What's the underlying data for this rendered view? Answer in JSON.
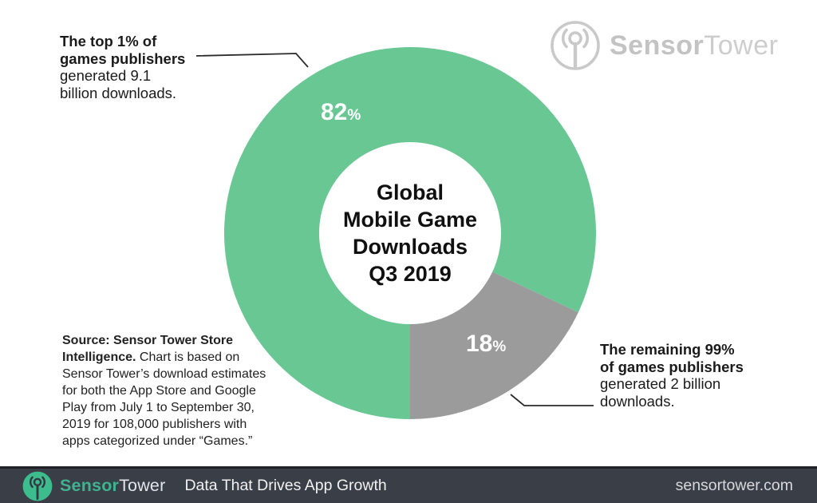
{
  "watermark": {
    "brand_bold": "Sensor",
    "brand_light": "Tower"
  },
  "annotations": {
    "top_left": {
      "lines": [
        "The top 1% of",
        "games publishers",
        "generated 9.1",
        "billion downloads."
      ]
    },
    "bottom_right": {
      "lines": [
        "The remaining 99%",
        "of games publishers",
        "generated 2 billion",
        "downloads."
      ]
    }
  },
  "source_note": {
    "line1_bold": "Source: Sensor Tower Store",
    "line2_bold": "Intelligence.",
    "line2_rest": " Chart is based on",
    "rest_lines": [
      "Sensor Tower’s download estimates",
      "for both the App Store and Google",
      "Play from July 1 to September 30,",
      "2019 for 108,000 publishers with",
      "apps categorized under “Games.”"
    ]
  },
  "chart_data": {
    "type": "pie",
    "donut": true,
    "title": "Global Mobile Game Downloads Q3 2019",
    "center_title_lines": [
      "Global",
      "Mobile Game",
      "Downloads",
      "Q3 2019"
    ],
    "categories": [
      "Top 1% of games publishers",
      "Remaining 99% of games publishers"
    ],
    "values": [
      82,
      18
    ],
    "label_values": [
      "82",
      "18"
    ],
    "unit": "%",
    "colors": [
      "#69c794",
      "#9b9b9b"
    ],
    "label_color": "#ffffff",
    "start_angle_deg": 180,
    "legend": "none"
  },
  "footer": {
    "brand_bold": "Sensor",
    "brand_light": "Tower",
    "tagline": "Data That Drives App Growth",
    "website": "sensortower.com",
    "bg_color": "#3a3e46",
    "accent_color": "#3fb390"
  }
}
